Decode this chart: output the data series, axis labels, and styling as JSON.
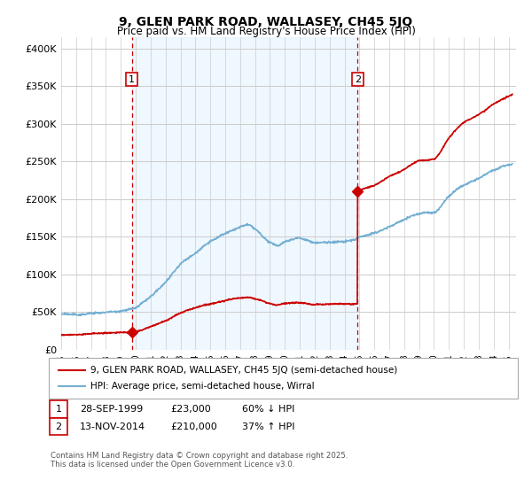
{
  "title": "9, GLEN PARK ROAD, WALLASEY, CH45 5JQ",
  "subtitle": "Price paid vs. HM Land Registry's House Price Index (HPI)",
  "ylabel_ticks": [
    "£0",
    "£50K",
    "£100K",
    "£150K",
    "£200K",
    "£250K",
    "£300K",
    "£350K",
    "£400K"
  ],
  "ytick_values": [
    0,
    50000,
    100000,
    150000,
    200000,
    250000,
    300000,
    350000,
    400000
  ],
  "ylim": [
    0,
    415000
  ],
  "xlim_start": 1995.0,
  "xlim_end": 2025.5,
  "t1_x": 1999.74,
  "t1_price": 23000,
  "t2_x": 2014.87,
  "t2_price": 210000,
  "line1_color": "#cc0000",
  "line2_color": "#74afd3",
  "vline_color": "#cc0000",
  "shade_color": "#ddeeff",
  "shade_alpha": 0.45,
  "line1_label": "9, GLEN PARK ROAD, WALLASEY, CH45 5JQ (semi-detached house)",
  "line2_label": "HPI: Average price, semi-detached house, Wirral",
  "tr1_text": "28-SEP-1999",
  "tr1_amount": "£23,000",
  "tr1_pct": "60% ↓ HPI",
  "tr2_text": "13-NOV-2014",
  "tr2_amount": "£210,000",
  "tr2_pct": "37% ↑ HPI",
  "footer": "Contains HM Land Registry data © Crown copyright and database right 2025.\nThis data is licensed under the Open Government Licence v3.0.",
  "grid_color": "#cccccc"
}
